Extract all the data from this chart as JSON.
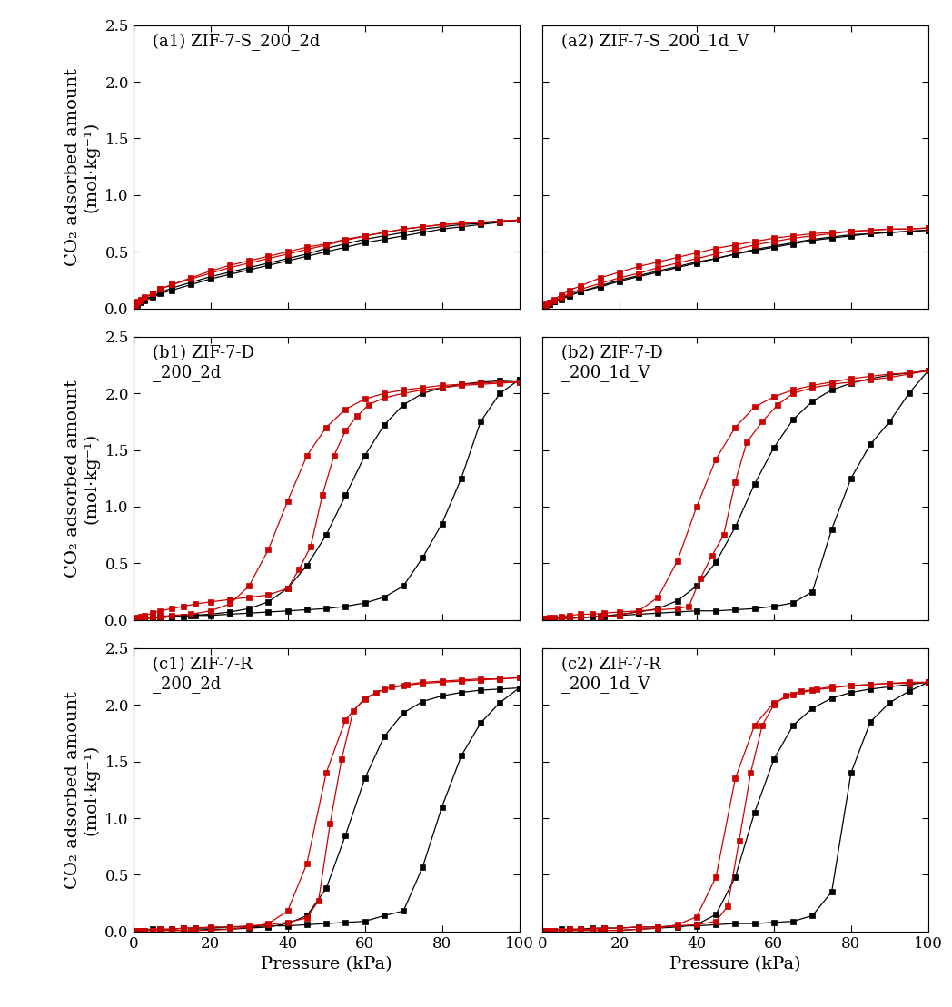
{
  "panels": [
    {
      "label": "(a1) ZIF-7-S_200_2d",
      "adsorption_black_x": [
        0.5,
        1,
        2,
        3,
        5,
        7,
        10,
        15,
        20,
        25,
        30,
        35,
        40,
        45,
        50,
        55,
        60,
        65,
        70,
        75,
        80,
        85,
        90,
        95,
        100
      ],
      "adsorption_black_y": [
        0.02,
        0.03,
        0.05,
        0.07,
        0.1,
        0.13,
        0.16,
        0.21,
        0.26,
        0.3,
        0.34,
        0.38,
        0.42,
        0.46,
        0.5,
        0.54,
        0.58,
        0.61,
        0.64,
        0.67,
        0.7,
        0.72,
        0.74,
        0.76,
        0.78
      ],
      "desorption_black_x": [
        100,
        95,
        90,
        85,
        80,
        75,
        70,
        65,
        60,
        55,
        50,
        45,
        40,
        35,
        30,
        25,
        20,
        15,
        10,
        7,
        5,
        3,
        2,
        1,
        0.5
      ],
      "desorption_black_y": [
        0.78,
        0.77,
        0.75,
        0.74,
        0.72,
        0.7,
        0.67,
        0.64,
        0.61,
        0.57,
        0.53,
        0.48,
        0.44,
        0.4,
        0.36,
        0.32,
        0.28,
        0.23,
        0.18,
        0.14,
        0.11,
        0.08,
        0.06,
        0.04,
        0.02
      ],
      "adsorption_red_x": [
        0.5,
        1,
        2,
        3,
        5,
        7,
        10,
        15,
        20,
        25,
        30,
        35,
        40,
        45,
        50,
        55,
        60,
        65,
        70,
        75,
        80,
        85,
        90,
        95,
        100
      ],
      "adsorption_red_y": [
        0.03,
        0.05,
        0.07,
        0.09,
        0.13,
        0.17,
        0.21,
        0.27,
        0.33,
        0.38,
        0.42,
        0.46,
        0.5,
        0.54,
        0.57,
        0.61,
        0.64,
        0.67,
        0.7,
        0.72,
        0.74,
        0.75,
        0.76,
        0.77,
        0.78
      ],
      "desorption_red_x": [
        100,
        95,
        90,
        85,
        80,
        75,
        70,
        65,
        60,
        55,
        50,
        45,
        40,
        35,
        30,
        25,
        20,
        15,
        10,
        7,
        5,
        3,
        2,
        1,
        0.5
      ],
      "desorption_red_y": [
        0.78,
        0.77,
        0.76,
        0.75,
        0.74,
        0.72,
        0.7,
        0.67,
        0.64,
        0.6,
        0.56,
        0.52,
        0.48,
        0.44,
        0.4,
        0.36,
        0.31,
        0.26,
        0.21,
        0.17,
        0.13,
        0.1,
        0.08,
        0.06,
        0.03
      ]
    },
    {
      "label": "(a2) ZIF-7-S_200_1d_V",
      "adsorption_black_x": [
        0.5,
        1,
        2,
        3,
        5,
        7,
        10,
        15,
        20,
        25,
        30,
        35,
        40,
        45,
        50,
        55,
        60,
        65,
        70,
        75,
        80,
        85,
        90,
        95,
        100
      ],
      "adsorption_black_y": [
        0.01,
        0.02,
        0.04,
        0.06,
        0.09,
        0.12,
        0.15,
        0.2,
        0.25,
        0.29,
        0.33,
        0.37,
        0.41,
        0.44,
        0.48,
        0.51,
        0.54,
        0.57,
        0.6,
        0.62,
        0.64,
        0.66,
        0.67,
        0.68,
        0.69
      ],
      "desorption_black_x": [
        100,
        95,
        90,
        85,
        80,
        75,
        70,
        65,
        60,
        55,
        50,
        45,
        40,
        35,
        30,
        25,
        20,
        15,
        10,
        7,
        5,
        3,
        2,
        1,
        0.5
      ],
      "desorption_black_y": [
        0.69,
        0.68,
        0.67,
        0.66,
        0.65,
        0.63,
        0.61,
        0.58,
        0.55,
        0.52,
        0.48,
        0.44,
        0.4,
        0.36,
        0.32,
        0.28,
        0.24,
        0.19,
        0.15,
        0.11,
        0.08,
        0.06,
        0.04,
        0.02,
        0.01
      ],
      "adsorption_red_x": [
        0.5,
        1,
        2,
        3,
        5,
        7,
        10,
        15,
        20,
        25,
        30,
        35,
        40,
        45,
        50,
        55,
        60,
        65,
        70,
        75,
        80,
        85,
        90,
        95,
        100
      ],
      "adsorption_red_y": [
        0.02,
        0.03,
        0.05,
        0.08,
        0.12,
        0.16,
        0.2,
        0.27,
        0.32,
        0.37,
        0.41,
        0.45,
        0.49,
        0.53,
        0.56,
        0.59,
        0.62,
        0.64,
        0.66,
        0.67,
        0.68,
        0.69,
        0.7,
        0.7,
        0.71
      ],
      "desorption_red_x": [
        100,
        95,
        90,
        85,
        80,
        75,
        70,
        65,
        60,
        55,
        50,
        45,
        40,
        35,
        30,
        25,
        20,
        15,
        10,
        7,
        5,
        3,
        2,
        1,
        0.5
      ],
      "desorption_red_y": [
        0.71,
        0.7,
        0.7,
        0.69,
        0.68,
        0.66,
        0.64,
        0.62,
        0.59,
        0.56,
        0.52,
        0.48,
        0.44,
        0.4,
        0.36,
        0.31,
        0.27,
        0.22,
        0.17,
        0.13,
        0.1,
        0.07,
        0.05,
        0.04,
        0.02
      ]
    },
    {
      "label": "(b1) ZIF-7-D\n_200_2d",
      "adsorption_black_x": [
        0.5,
        1,
        2,
        3,
        5,
        7,
        10,
        13,
        16,
        20,
        25,
        30,
        35,
        40,
        45,
        50,
        55,
        60,
        65,
        70,
        75,
        80,
        85,
        90,
        95,
        100
      ],
      "adsorption_black_y": [
        0.01,
        0.01,
        0.01,
        0.02,
        0.02,
        0.02,
        0.03,
        0.03,
        0.04,
        0.04,
        0.05,
        0.06,
        0.07,
        0.08,
        0.09,
        0.1,
        0.12,
        0.15,
        0.2,
        0.3,
        0.55,
        0.85,
        1.25,
        1.75,
        2.0,
        2.12
      ],
      "desorption_black_x": [
        100,
        95,
        90,
        85,
        80,
        75,
        70,
        65,
        60,
        55,
        50,
        45,
        40,
        35,
        30,
        25,
        20,
        15,
        10,
        7,
        5,
        3,
        2,
        1,
        0.5
      ],
      "desorption_black_y": [
        2.12,
        2.11,
        2.1,
        2.08,
        2.05,
        2.0,
        1.9,
        1.72,
        1.45,
        1.1,
        0.75,
        0.48,
        0.28,
        0.16,
        0.1,
        0.07,
        0.05,
        0.04,
        0.03,
        0.02,
        0.02,
        0.01,
        0.01,
        0.01,
        0.01
      ],
      "adsorption_red_x": [
        0.5,
        1,
        2,
        3,
        5,
        7,
        10,
        13,
        16,
        20,
        25,
        30,
        35,
        40,
        43,
        46,
        49,
        52,
        55,
        58,
        61,
        65,
        70,
        75,
        80,
        85,
        90,
        95,
        100
      ],
      "adsorption_red_y": [
        0.01,
        0.02,
        0.03,
        0.04,
        0.06,
        0.08,
        0.1,
        0.12,
        0.14,
        0.16,
        0.18,
        0.2,
        0.22,
        0.28,
        0.45,
        0.65,
        1.1,
        1.45,
        1.67,
        1.8,
        1.9,
        1.96,
        2.0,
        2.03,
        2.05,
        2.07,
        2.08,
        2.09,
        2.1
      ],
      "desorption_red_x": [
        100,
        95,
        90,
        85,
        80,
        75,
        70,
        65,
        60,
        55,
        50,
        45,
        40,
        35,
        30,
        25,
        20,
        15,
        10,
        7,
        5,
        3,
        2,
        1,
        0.5
      ],
      "desorption_red_y": [
        2.1,
        2.1,
        2.09,
        2.08,
        2.07,
        2.05,
        2.03,
        2.0,
        1.95,
        1.86,
        1.7,
        1.45,
        1.05,
        0.62,
        0.3,
        0.14,
        0.08,
        0.05,
        0.04,
        0.03,
        0.02,
        0.01,
        0.01,
        0.01,
        0.01
      ]
    },
    {
      "label": "(b2) ZIF-7-D\n_200_1d_V",
      "adsorption_black_x": [
        0.5,
        1,
        2,
        3,
        5,
        7,
        10,
        13,
        16,
        20,
        25,
        30,
        35,
        40,
        45,
        50,
        55,
        60,
        65,
        70,
        75,
        80,
        85,
        90,
        95,
        100
      ],
      "adsorption_black_y": [
        0.01,
        0.01,
        0.01,
        0.01,
        0.02,
        0.02,
        0.02,
        0.03,
        0.03,
        0.04,
        0.05,
        0.06,
        0.07,
        0.08,
        0.08,
        0.09,
        0.1,
        0.12,
        0.15,
        0.25,
        0.8,
        1.25,
        1.55,
        1.75,
        2.0,
        2.2
      ],
      "desorption_black_x": [
        100,
        95,
        90,
        85,
        80,
        75,
        70,
        65,
        60,
        55,
        50,
        45,
        40,
        35,
        30,
        25,
        20,
        15,
        10,
        7,
        5,
        3,
        2,
        1,
        0.5
      ],
      "desorption_black_y": [
        2.2,
        2.18,
        2.16,
        2.13,
        2.09,
        2.03,
        1.93,
        1.77,
        1.52,
        1.2,
        0.82,
        0.51,
        0.3,
        0.17,
        0.1,
        0.07,
        0.05,
        0.03,
        0.02,
        0.02,
        0.01,
        0.01,
        0.01,
        0.01,
        0.01
      ],
      "adsorption_red_x": [
        0.5,
        1,
        2,
        3,
        5,
        7,
        10,
        13,
        16,
        20,
        25,
        30,
        35,
        38,
        41,
        44,
        47,
        50,
        53,
        57,
        61,
        65,
        70,
        75,
        80,
        85,
        90,
        95,
        100
      ],
      "adsorption_red_y": [
        0.01,
        0.01,
        0.02,
        0.02,
        0.03,
        0.04,
        0.05,
        0.05,
        0.06,
        0.07,
        0.08,
        0.09,
        0.1,
        0.12,
        0.37,
        0.57,
        0.75,
        1.22,
        1.57,
        1.75,
        1.9,
        2.0,
        2.05,
        2.08,
        2.1,
        2.12,
        2.14,
        2.17,
        2.2
      ],
      "desorption_red_x": [
        100,
        95,
        90,
        85,
        80,
        75,
        70,
        65,
        60,
        55,
        50,
        45,
        40,
        35,
        30,
        25,
        20,
        15,
        10,
        7,
        5,
        3,
        2,
        1,
        0.5
      ],
      "desorption_red_y": [
        2.2,
        2.18,
        2.17,
        2.15,
        2.13,
        2.1,
        2.07,
        2.03,
        1.97,
        1.88,
        1.7,
        1.42,
        1.0,
        0.52,
        0.2,
        0.08,
        0.04,
        0.03,
        0.02,
        0.01,
        0.01,
        0.01,
        0.01,
        0.01,
        0.01
      ]
    },
    {
      "label": "(c1) ZIF-7-R\n_200_2d",
      "adsorption_black_x": [
        0.5,
        1,
        2,
        3,
        5,
        7,
        10,
        13,
        16,
        20,
        25,
        30,
        35,
        40,
        45,
        50,
        55,
        60,
        65,
        70,
        75,
        80,
        85,
        90,
        95,
        100
      ],
      "adsorption_black_y": [
        0.01,
        0.01,
        0.01,
        0.01,
        0.02,
        0.02,
        0.02,
        0.03,
        0.03,
        0.03,
        0.04,
        0.04,
        0.05,
        0.05,
        0.06,
        0.07,
        0.08,
        0.09,
        0.14,
        0.18,
        0.57,
        1.1,
        1.55,
        1.84,
        2.02,
        2.15
      ],
      "desorption_black_x": [
        100,
        95,
        90,
        85,
        80,
        75,
        70,
        65,
        60,
        55,
        50,
        45,
        40,
        35,
        30,
        25,
        20,
        15,
        10,
        7,
        5,
        3,
        2,
        1,
        0.5
      ],
      "desorption_black_y": [
        2.15,
        2.14,
        2.13,
        2.11,
        2.08,
        2.03,
        1.93,
        1.72,
        1.35,
        0.85,
        0.38,
        0.14,
        0.07,
        0.04,
        0.03,
        0.02,
        0.02,
        0.01,
        0.01,
        0.01,
        0.01,
        0.01,
        0.01,
        0.01,
        0.01
      ],
      "adsorption_red_x": [
        0.5,
        1,
        2,
        3,
        5,
        7,
        10,
        13,
        16,
        20,
        25,
        30,
        35,
        40,
        45,
        48,
        51,
        54,
        57,
        60,
        63,
        67,
        71,
        75,
        80,
        85,
        90,
        95,
        100
      ],
      "adsorption_red_y": [
        0.01,
        0.01,
        0.01,
        0.01,
        0.01,
        0.02,
        0.02,
        0.03,
        0.03,
        0.04,
        0.04,
        0.05,
        0.06,
        0.08,
        0.12,
        0.27,
        0.95,
        1.52,
        1.95,
        2.05,
        2.11,
        2.16,
        2.18,
        2.2,
        2.21,
        2.22,
        2.23,
        2.23,
        2.24
      ],
      "desorption_red_x": [
        100,
        95,
        90,
        85,
        80,
        75,
        70,
        65,
        60,
        55,
        50,
        45,
        40,
        35,
        30,
        25,
        20,
        15,
        10,
        7,
        5,
        3,
        2,
        1,
        0.5
      ],
      "desorption_red_y": [
        2.24,
        2.23,
        2.22,
        2.21,
        2.2,
        2.19,
        2.17,
        2.14,
        2.06,
        1.87,
        1.4,
        0.6,
        0.18,
        0.07,
        0.04,
        0.02,
        0.01,
        0.01,
        0.01,
        0.01,
        0.01,
        0.01,
        0.01,
        0.01,
        0.01
      ]
    },
    {
      "label": "(c2) ZIF-7-R\n_200_1d_V",
      "adsorption_black_x": [
        0.5,
        1,
        2,
        3,
        5,
        7,
        10,
        13,
        16,
        20,
        25,
        30,
        35,
        40,
        45,
        50,
        55,
        60,
        65,
        70,
        75,
        80,
        85,
        90,
        95,
        100
      ],
      "adsorption_black_y": [
        0.01,
        0.01,
        0.01,
        0.01,
        0.02,
        0.02,
        0.02,
        0.03,
        0.03,
        0.03,
        0.04,
        0.04,
        0.05,
        0.05,
        0.06,
        0.07,
        0.07,
        0.08,
        0.09,
        0.14,
        0.35,
        1.4,
        1.85,
        2.02,
        2.12,
        2.2
      ],
      "desorption_black_x": [
        100,
        95,
        90,
        85,
        80,
        75,
        70,
        65,
        60,
        55,
        50,
        45,
        40,
        35,
        30,
        25,
        20,
        15,
        10,
        7,
        5,
        3,
        2,
        1,
        0.5
      ],
      "desorption_black_y": [
        2.2,
        2.18,
        2.16,
        2.14,
        2.11,
        2.06,
        1.97,
        1.82,
        1.52,
        1.05,
        0.48,
        0.15,
        0.06,
        0.04,
        0.03,
        0.02,
        0.01,
        0.01,
        0.01,
        0.01,
        0.01,
        0.01,
        0.01,
        0.01,
        0.01
      ],
      "adsorption_red_x": [
        0.5,
        1,
        2,
        3,
        5,
        7,
        10,
        13,
        16,
        20,
        25,
        30,
        35,
        40,
        45,
        48,
        51,
        54,
        57,
        60,
        63,
        67,
        71,
        75,
        80,
        85,
        90,
        95,
        100
      ],
      "adsorption_red_y": [
        0.01,
        0.01,
        0.01,
        0.01,
        0.01,
        0.02,
        0.02,
        0.02,
        0.03,
        0.03,
        0.04,
        0.04,
        0.05,
        0.06,
        0.09,
        0.22,
        0.8,
        1.4,
        1.82,
        2.0,
        2.08,
        2.12,
        2.14,
        2.16,
        2.17,
        2.18,
        2.19,
        2.19,
        2.2
      ],
      "desorption_red_x": [
        100,
        95,
        90,
        85,
        80,
        75,
        70,
        65,
        60,
        55,
        50,
        45,
        40,
        35,
        30,
        25,
        20,
        15,
        10,
        7,
        5,
        3,
        2,
        1,
        0.5
      ],
      "desorption_red_y": [
        2.2,
        2.2,
        2.19,
        2.18,
        2.17,
        2.15,
        2.13,
        2.09,
        2.02,
        1.82,
        1.35,
        0.48,
        0.13,
        0.06,
        0.03,
        0.02,
        0.01,
        0.01,
        0.01,
        0.01,
        0.01,
        0.01,
        0.01,
        0.01,
        0.01
      ]
    }
  ],
  "black_color": "#000000",
  "red_color": "#cc0000",
  "marker": "s",
  "markersize": 4.5,
  "linewidth": 0.9,
  "ylim": [
    0,
    2.5
  ],
  "xlim": [
    0,
    100
  ],
  "yticks": [
    0.0,
    0.5,
    1.0,
    1.5,
    2.0,
    2.5
  ],
  "xticks": [
    0,
    20,
    40,
    60,
    80,
    100
  ],
  "xlabel": "Pressure (kPa)",
  "ylabel": "CO₂ adsorbed amount\n(mol·kg⁻¹)",
  "figure_bg": "#ffffff",
  "label_fontsize": 14,
  "tick_fontsize": 12,
  "annotation_fontsize": 13
}
